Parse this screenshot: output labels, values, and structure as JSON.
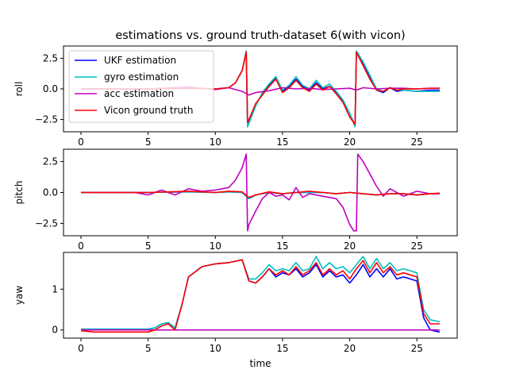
{
  "title": "estimations vs. ground truth-dataset 6(with vicon)",
  "colors": {
    "ukf": "#0000ff",
    "gyro": "#00bfbf",
    "acc": "#bf00bf",
    "vicon": "#ff0000"
  },
  "chart_data": [
    {
      "type": "line",
      "title": "estimations vs. ground truth-dataset 6(with vicon)",
      "xlabel": "",
      "ylabel": "roll",
      "xlim": [
        -1.3,
        28
      ],
      "ylim": [
        -3.5,
        3.5
      ],
      "xticks": [
        0,
        5,
        10,
        15,
        20,
        25
      ],
      "yticks": [
        -2.5,
        0.0,
        2.5
      ],
      "ytick_labels": [
        "−2.5",
        "0.0",
        "2.5"
      ],
      "legend": "upper left",
      "series": [
        {
          "name": "UKF estimation",
          "color": "#0000ff",
          "x": [
            0,
            5,
            8,
            10,
            11,
            11.5,
            12,
            12.3,
            12.4,
            12.5,
            13,
            13.5,
            14,
            14.5,
            15,
            15.5,
            16,
            16.5,
            17,
            17.5,
            18,
            18.5,
            19,
            19.5,
            20,
            20.4,
            20.5,
            21,
            21.5,
            22,
            22.5,
            23,
            23.5,
            24,
            25,
            26,
            26.7
          ],
          "y": [
            0,
            0,
            0.05,
            0,
            0.1,
            0.5,
            1.5,
            3.0,
            -3.0,
            -2.7,
            -1.3,
            -0.4,
            0.3,
            0.9,
            -0.2,
            0.2,
            0.8,
            0.2,
            -0.1,
            0.5,
            0.0,
            0.2,
            -0.3,
            -1.0,
            -2.0,
            -3.0,
            3.0,
            2.0,
            1.0,
            -0.1,
            -0.3,
            0.1,
            -0.2,
            -0.1,
            -0.2,
            -0.1,
            -0.1
          ]
        },
        {
          "name": "gyro estimation",
          "color": "#00bfbf",
          "x": [
            0,
            5,
            8,
            10,
            11,
            11.5,
            12,
            12.3,
            12.4,
            12.5,
            13,
            13.5,
            14,
            14.5,
            15,
            15.5,
            16,
            16.5,
            17,
            17.5,
            18,
            18.5,
            19,
            19.5,
            20,
            20.4,
            20.5,
            21,
            21.5,
            22,
            22.5,
            23,
            23.5,
            24,
            25,
            26,
            26.7
          ],
          "y": [
            0,
            0,
            0.05,
            0,
            0.1,
            0.5,
            1.5,
            3.1,
            -3.1,
            -2.8,
            -1.4,
            -0.3,
            0.4,
            1.0,
            -0.1,
            0.3,
            1.0,
            0.3,
            0.0,
            0.7,
            0.1,
            0.4,
            -0.2,
            -0.9,
            -2.0,
            -3.1,
            3.1,
            2.2,
            1.1,
            0.0,
            -0.2,
            0.1,
            -0.1,
            -0.1,
            -0.2,
            -0.2,
            -0.2
          ]
        },
        {
          "name": "acc estimation",
          "color": "#bf00bf",
          "x": [
            0,
            2,
            4,
            6,
            8,
            10,
            11,
            12,
            12.5,
            13,
            14,
            15,
            16,
            17,
            18,
            19,
            20,
            20.5,
            21,
            22,
            23,
            24,
            25,
            26,
            26.7
          ],
          "y": [
            0,
            0.02,
            -0.05,
            0.05,
            0.15,
            -0.05,
            0.1,
            -0.2,
            -0.5,
            -0.3,
            -0.15,
            0.1,
            0.0,
            0.05,
            -0.05,
            0.0,
            0.05,
            -0.1,
            0.1,
            0.0,
            0.05,
            0.05,
            0.0,
            0.05,
            0.05
          ]
        },
        {
          "name": "Vicon ground truth",
          "color": "#ff0000",
          "x": [
            0,
            5,
            8,
            10,
            11,
            11.5,
            12,
            12.3,
            12.4,
            12.5,
            13,
            13.5,
            14,
            14.5,
            15,
            15.5,
            16,
            16.5,
            17,
            17.5,
            18,
            18.5,
            19,
            19.5,
            20,
            20.4,
            20.5,
            21,
            21.5,
            22,
            22.5,
            23,
            23.5,
            24,
            25,
            26,
            26.7
          ],
          "y": [
            0,
            0,
            0.05,
            0,
            0.1,
            0.5,
            1.5,
            3.0,
            -2.7,
            -2.5,
            -1.2,
            -0.5,
            0.2,
            0.8,
            -0.3,
            0.1,
            0.7,
            0.1,
            -0.2,
            0.4,
            -0.1,
            0.2,
            -0.4,
            -1.1,
            -2.3,
            -2.9,
            3.0,
            1.9,
            0.8,
            -0.1,
            -0.2,
            0.1,
            -0.1,
            0.0,
            0.0,
            0.05,
            0.05
          ]
        }
      ]
    },
    {
      "type": "line",
      "xlabel": "",
      "ylabel": "pitch",
      "xlim": [
        -1.3,
        28
      ],
      "ylim": [
        -3.5,
        3.5
      ],
      "xticks": [
        0,
        5,
        10,
        15,
        20,
        25
      ],
      "yticks": [
        -2.5,
        0.0,
        2.5
      ],
      "ytick_labels": [
        "−2.5",
        "0.0",
        "2.5"
      ],
      "series": [
        {
          "name": "UKF estimation",
          "color": "#0000ff",
          "x": [
            0,
            5,
            8,
            10,
            11,
            12,
            12.5,
            13,
            14,
            15,
            16,
            17,
            18,
            19,
            20,
            21,
            22,
            23,
            24,
            25,
            26,
            26.7
          ],
          "y": [
            0,
            0,
            0.05,
            0,
            0.05,
            0.0,
            -0.5,
            -0.2,
            0.0,
            -0.1,
            0.0,
            0.0,
            0.0,
            -0.1,
            0.0,
            -0.1,
            -0.2,
            -0.1,
            -0.1,
            -0.2,
            -0.1,
            -0.1
          ]
        },
        {
          "name": "gyro estimation",
          "color": "#00bfbf",
          "x": [
            0,
            5,
            8,
            10,
            11,
            12,
            12.5,
            13,
            14,
            15,
            16,
            17,
            18,
            19,
            20,
            21,
            22,
            23,
            24,
            25,
            26,
            26.7
          ],
          "y": [
            0,
            0,
            0.05,
            0,
            0.05,
            0.0,
            -0.5,
            -0.2,
            0.0,
            -0.1,
            0.0,
            0.0,
            0.0,
            -0.1,
            0.0,
            -0.1,
            -0.2,
            -0.1,
            -0.1,
            -0.2,
            -0.1,
            -0.1
          ]
        },
        {
          "name": "acc estimation",
          "color": "#bf00bf",
          "x": [
            0,
            4,
            5,
            6,
            7,
            8,
            9,
            10,
            11,
            11.5,
            12,
            12.3,
            12.4,
            12.5,
            13,
            13.5,
            14,
            14.5,
            15,
            15.5,
            16,
            16.5,
            17,
            18,
            19,
            19.5,
            20,
            20.3,
            20.5,
            20.6,
            21,
            21.5,
            22,
            22.5,
            23,
            24,
            25,
            26,
            26.7
          ],
          "y": [
            0,
            0.0,
            -0.2,
            0.2,
            -0.2,
            0.3,
            0.1,
            0.2,
            0.4,
            1.0,
            2.0,
            3.1,
            -3.1,
            -2.6,
            -1.5,
            -0.5,
            0.0,
            -0.3,
            -0.2,
            -0.6,
            0.4,
            -0.4,
            -0.1,
            -0.3,
            -0.5,
            -1.2,
            -2.6,
            -3.1,
            -3.1,
            3.1,
            2.5,
            1.5,
            0.5,
            -0.3,
            0.3,
            -0.3,
            0.1,
            -0.1,
            -0.1
          ]
        },
        {
          "name": "Vicon ground truth",
          "color": "#ff0000",
          "x": [
            0,
            5,
            8,
            10,
            11,
            12,
            12.5,
            13,
            14,
            15,
            16,
            17,
            18,
            19,
            20,
            21,
            22,
            23,
            24,
            25,
            26,
            26.7
          ],
          "y": [
            0,
            0,
            0.1,
            0,
            0.1,
            0.05,
            -0.4,
            -0.2,
            0.05,
            -0.1,
            0.0,
            0.1,
            0.0,
            -0.1,
            0.0,
            -0.1,
            -0.2,
            -0.1,
            -0.1,
            -0.2,
            -0.1,
            -0.05
          ]
        }
      ]
    },
    {
      "type": "line",
      "xlabel": "time",
      "ylabel": "yaw",
      "xlim": [
        -1.3,
        28
      ],
      "ylim": [
        -0.2,
        1.9
      ],
      "xticks": [
        0,
        5,
        10,
        15,
        20,
        25
      ],
      "yticks": [
        0,
        1
      ],
      "ytick_labels": [
        "0",
        "1"
      ],
      "series": [
        {
          "name": "UKF estimation",
          "color": "#0000ff",
          "x": [
            0,
            4,
            5,
            5.5,
            6,
            6.5,
            7,
            7.5,
            8,
            9,
            10,
            11,
            12,
            12.5,
            13,
            13.5,
            14,
            14.5,
            15,
            15.5,
            16,
            16.5,
            17,
            17.5,
            18,
            18.5,
            19,
            19.5,
            20,
            20.5,
            21,
            21.5,
            22,
            22.5,
            23,
            23.5,
            24,
            24.5,
            25,
            25.5,
            26,
            26.7
          ],
          "y": [
            0.02,
            0.02,
            0.02,
            0.05,
            0.15,
            0.18,
            0.05,
            0.6,
            1.3,
            1.55,
            1.62,
            1.65,
            1.72,
            1.2,
            1.15,
            1.3,
            1.5,
            1.3,
            1.4,
            1.35,
            1.5,
            1.3,
            1.4,
            1.6,
            1.3,
            1.45,
            1.3,
            1.35,
            1.15,
            1.35,
            1.6,
            1.3,
            1.5,
            1.3,
            1.5,
            1.25,
            1.3,
            1.25,
            1.2,
            0.3,
            0.0,
            -0.05
          ]
        },
        {
          "name": "gyro estimation",
          "color": "#00bfbf",
          "x": [
            0,
            4,
            5,
            5.5,
            6,
            6.5,
            7,
            7.5,
            8,
            9,
            10,
            11,
            12,
            12.5,
            13,
            13.5,
            14,
            14.5,
            15,
            15.5,
            16,
            16.5,
            17,
            17.5,
            18,
            18.5,
            19,
            19.5,
            20,
            20.5,
            21,
            21.5,
            22,
            22.5,
            23,
            23.5,
            24,
            24.5,
            25,
            25.5,
            26,
            26.7
          ],
          "y": [
            0.02,
            0.02,
            0.02,
            0.05,
            0.15,
            0.18,
            0.05,
            0.6,
            1.3,
            1.55,
            1.62,
            1.65,
            1.72,
            1.25,
            1.25,
            1.4,
            1.6,
            1.45,
            1.5,
            1.45,
            1.65,
            1.45,
            1.5,
            1.8,
            1.5,
            1.65,
            1.5,
            1.55,
            1.4,
            1.6,
            1.8,
            1.5,
            1.75,
            1.5,
            1.65,
            1.45,
            1.5,
            1.45,
            1.4,
            0.5,
            0.25,
            0.2
          ]
        },
        {
          "name": "acc estimation",
          "color": "#bf00bf",
          "x": [
            0,
            26.7
          ],
          "y": [
            0,
            0
          ]
        },
        {
          "name": "Vicon ground truth",
          "color": "#ff0000",
          "x": [
            0,
            1,
            4,
            5,
            5.5,
            6,
            6.5,
            7,
            7.5,
            8,
            9,
            10,
            11,
            12,
            12.5,
            13,
            13.5,
            14,
            14.5,
            15,
            15.5,
            16,
            16.5,
            17,
            17.5,
            18,
            18.5,
            19,
            19.5,
            20,
            20.5,
            21,
            21.5,
            22,
            22.5,
            23,
            23.5,
            24,
            24.5,
            25,
            25.5,
            26,
            26.7
          ],
          "y": [
            -0.02,
            -0.05,
            -0.05,
            -0.05,
            0.0,
            0.1,
            0.15,
            0.0,
            0.6,
            1.3,
            1.55,
            1.62,
            1.65,
            1.72,
            1.2,
            1.15,
            1.3,
            1.5,
            1.35,
            1.45,
            1.35,
            1.55,
            1.35,
            1.45,
            1.65,
            1.35,
            1.5,
            1.35,
            1.45,
            1.25,
            1.5,
            1.7,
            1.4,
            1.65,
            1.4,
            1.55,
            1.35,
            1.4,
            1.35,
            1.3,
            0.4,
            0.15,
            0.15
          ]
        }
      ]
    }
  ],
  "legend": {
    "entries": [
      "UKF estimation",
      "gyro estimation",
      "acc estimation",
      "Vicon ground truth"
    ]
  }
}
